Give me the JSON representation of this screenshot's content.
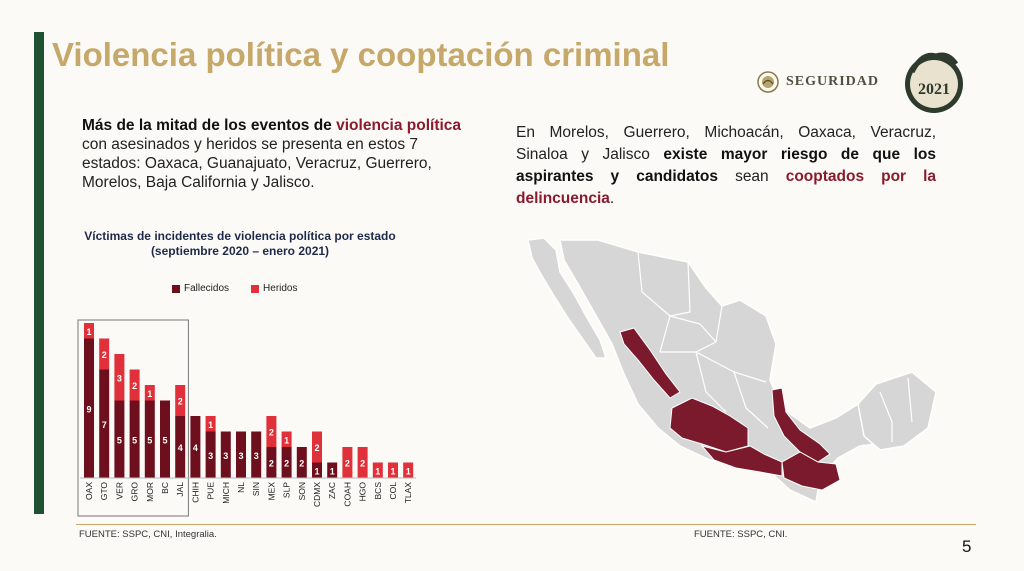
{
  "slide": {
    "title": "Violencia política y cooptación criminal",
    "page_number": "5"
  },
  "logos": {
    "seguridad_text": "SEGURIDAD",
    "mexico_year": "2021"
  },
  "left_text": {
    "bold1": "Más de la mitad de los eventos de",
    "red1": "violencia política",
    "rest1": "con asesinados y heridos se presenta en estos 7 estados: Oaxaca, Guanajuato, Veracruz, Guerrero, Morelos, Baja California y Jalisco."
  },
  "right_text": {
    "plain1": "En Morelos, Guerrero, Michoacán, Oaxaca, Veracruz, Sinaloa y Jalisco",
    "bold1": "existe mayor riesgo de que los aspirantes y candidatos",
    "plain2": "sean",
    "red1": "cooptados por la delincuencia",
    "plain3": "."
  },
  "sources": {
    "left": "FUENTE: SSPC, CNI, Integralia.",
    "right": "FUENTE: SSPC, CNI."
  },
  "colors": {
    "fallecidos": "#6e0f1e",
    "heridos": "#e0303a",
    "map_highlight": "#7a1a2c",
    "map_base": "#d6d6d6",
    "title_gold": "#c6a86a"
  },
  "chart_data": {
    "type": "bar",
    "stacked": true,
    "title": "Víctimas de incidentes de violencia política por estado (septiembre 2020 – enero 2021)",
    "categories": [
      "OAX",
      "GTO",
      "VER",
      "GRO",
      "MOR",
      "BC",
      "JAL",
      "CHIH",
      "PUE",
      "MICH",
      "NL",
      "SIN",
      "MEX",
      "SLP",
      "SON",
      "CDMX",
      "ZAC",
      "COAH",
      "HGO",
      "BCS",
      "COL",
      "TLAX"
    ],
    "series": [
      {
        "name": "Fallecidos",
        "values": [
          9,
          7,
          5,
          5,
          5,
          5,
          4,
          4,
          3,
          3,
          3,
          3,
          2,
          2,
          2,
          1,
          1,
          0,
          0,
          0,
          0,
          0
        ]
      },
      {
        "name": "Heridos",
        "values": [
          1,
          2,
          3,
          2,
          1,
          0,
          2,
          0,
          1,
          0,
          0,
          0,
          2,
          1,
          0,
          2,
          0,
          2,
          2,
          1,
          1,
          1
        ]
      }
    ],
    "highlighted_categories": [
      "OAX",
      "GTO",
      "VER",
      "GRO",
      "MOR",
      "BC",
      "JAL"
    ],
    "legend_position": "top",
    "grid": false
  }
}
